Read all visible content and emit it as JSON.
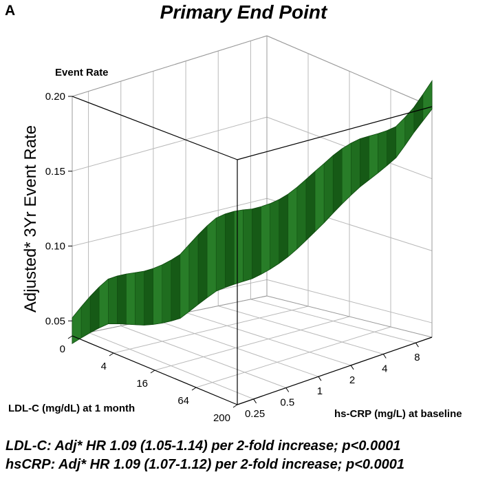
{
  "panel_label": "A",
  "footnotes": [
    "LDL-C: Adj* HR 1.09 (1.05-1.14) per 2-fold increase; p<0.0001",
    "hsCRP: Adj* HR  1.09 (1.07-1.12) per 2-fold increase; p<0.0001"
  ],
  "colors": {
    "surface": "#1f6e1f",
    "surface_dark": "#0f4a0f",
    "surface_light": "#2f8a2f",
    "box": "#000000",
    "grid": "#b8b8b8"
  },
  "chart_data": {
    "type": "surface3d",
    "title": "Primary End Point",
    "zlabel": "Adjusted* 3Yr Event Rate",
    "zaxis_title": "Event Rate",
    "xlabel": "LDL-C (mg/dL) at 1 month",
    "ylabel": "hs-CRP (mg/L) at baseline",
    "zlim": [
      0.04,
      0.2
    ],
    "z_ticks": [
      "0.05",
      "0.10",
      "0.15",
      "0.20"
    ],
    "z_tick_values": [
      0.05,
      0.1,
      0.15,
      0.2
    ],
    "x_ticks": [
      "0",
      "4",
      "16",
      "64",
      "200"
    ],
    "y_ticks": [
      "0.25",
      "0.5",
      "1",
      "2",
      "4",
      "8"
    ],
    "grid": true,
    "surface_profile": {
      "description_axis": "event rate vs combined LDL-C/hs-CRP position",
      "t": [
        0,
        0.1,
        0.2,
        0.3,
        0.4,
        0.5,
        0.6,
        0.7,
        0.8,
        0.9,
        1.0
      ],
      "z": [
        0.043,
        0.058,
        0.064,
        0.072,
        0.09,
        0.102,
        0.118,
        0.135,
        0.155,
        0.172,
        0.199
      ]
    }
  }
}
